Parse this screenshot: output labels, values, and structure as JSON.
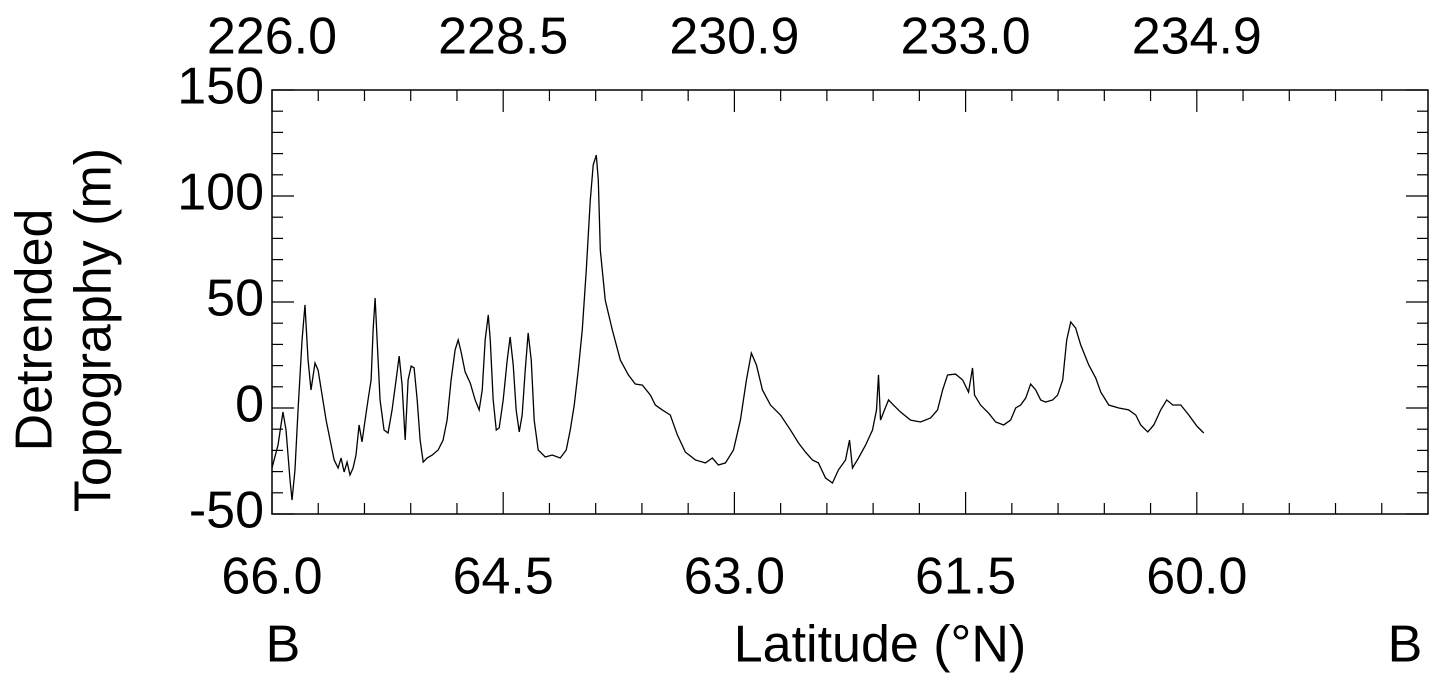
{
  "chart_data": {
    "type": "line",
    "ylabel": [
      "Detrended",
      "Topography (m)"
    ],
    "xlabel": "Latitude (°N)",
    "annotations": [
      "B",
      "B"
    ],
    "color": "#000000",
    "xlim": [
      66.0,
      58.5
    ],
    "xticks": [
      {
        "value": 66.0,
        "label": "66.0"
      },
      {
        "value": 64.5,
        "label": "64.5"
      },
      {
        "value": 63.0,
        "label": "63.0"
      },
      {
        "value": 61.5,
        "label": "61.5"
      },
      {
        "value": 60.0,
        "label": "60.0"
      }
    ],
    "x2tick_labels": [
      "226.0",
      "228.5",
      "230.9",
      "233.0",
      "234.9"
    ],
    "x_minor_per_major": 5,
    "ylim": [
      -50,
      150
    ],
    "yticks": [
      -50,
      0,
      50,
      100,
      150
    ],
    "y_minor_per_major": 5,
    "x": [
      66.0,
      65.961,
      65.929,
      65.909,
      65.883,
      65.87,
      65.851,
      65.831,
      65.805,
      65.786,
      65.766,
      65.747,
      65.721,
      65.701,
      65.675,
      65.649,
      65.623,
      65.597,
      65.571,
      65.552,
      65.532,
      65.513,
      65.494,
      65.474,
      65.455,
      65.435,
      65.416,
      65.396,
      65.377,
      65.357,
      65.344,
      65.331,
      65.318,
      65.299,
      65.273,
      65.247,
      65.221,
      65.195,
      65.175,
      65.156,
      65.136,
      65.117,
      65.097,
      65.078,
      65.058,
      65.039,
      65.019,
      64.994,
      64.961,
      64.922,
      64.89,
      64.864,
      64.838,
      64.812,
      64.792,
      64.773,
      64.747,
      64.714,
      64.682,
      64.656,
      64.636,
      64.617,
      64.597,
      64.584,
      64.565,
      64.545,
      64.526,
      64.5,
      64.474,
      64.455,
      64.435,
      64.416,
      64.396,
      64.377,
      64.357,
      64.338,
      64.318,
      64.299,
      64.273,
      64.227,
      64.182,
      64.13,
      64.091,
      64.065,
      64.039,
      64.013,
      63.987,
      63.961,
      63.935,
      63.916,
      63.896,
      63.883,
      63.87,
      63.838,
      63.792,
      63.74,
      63.688,
      63.643,
      63.597,
      63.545,
      63.513,
      63.468,
      63.416,
      63.37,
      63.318,
      63.253,
      63.188,
      63.143,
      63.104,
      63.058,
      63.006,
      62.961,
      62.922,
      62.89,
      62.857,
      62.818,
      62.766,
      62.701,
      62.636,
      62.584,
      62.539,
      62.494,
      62.455,
      62.409,
      62.364,
      62.325,
      62.279,
      62.253,
      62.234,
      62.195,
      62.149,
      62.104,
      62.078,
      62.065,
      62.052,
      62.026,
      62.0,
      61.968,
      61.922,
      61.857,
      61.792,
      61.727,
      61.682,
      61.649,
      61.617,
      61.565,
      61.519,
      61.481,
      61.455,
      61.442,
      61.403,
      61.351,
      61.305,
      61.253,
      61.208,
      61.175,
      61.143,
      61.11,
      61.078,
      61.045,
      61.013,
      60.981,
      60.935,
      60.903,
      60.87,
      60.844,
      60.818,
      60.786,
      60.753,
      60.701,
      60.656,
      60.623,
      60.571,
      60.506,
      60.442,
      60.396,
      60.364,
      60.318,
      60.279,
      60.234,
      60.195,
      60.156,
      60.104,
      60.052,
      60.0,
      59.955
    ],
    "values": [
      -28.3,
      -17.5,
      -1.9,
      -10.4,
      -34.0,
      -43.4,
      -29.2,
      -0.9,
      32.1,
      48.6,
      22.6,
      8.5,
      21.2,
      17.9,
      6.1,
      -5.7,
      -15.1,
      -24.5,
      -28.3,
      -23.6,
      -30.2,
      -25.5,
      -31.6,
      -28.3,
      -22.2,
      -8.0,
      -16.0,
      -5.7,
      3.8,
      13.2,
      36.8,
      51.9,
      32.1,
      3.8,
      -10.4,
      -11.8,
      -0.9,
      13.2,
      24.5,
      10.8,
      -15.1,
      13.2,
      19.8,
      18.9,
      3.8,
      -15.1,
      -25.5,
      -23.6,
      -22.2,
      -19.8,
      -15.1,
      -5.7,
      13.2,
      27.4,
      32.1,
      26.4,
      17.0,
      11.8,
      3.8,
      -0.9,
      8.5,
      32.1,
      43.9,
      32.1,
      3.8,
      -10.4,
      -9.4,
      3.8,
      22.6,
      33.5,
      20.3,
      -0.9,
      -11.3,
      -3.3,
      17.9,
      35.4,
      22.6,
      -5.7,
      -19.8,
      -23.1,
      -22.2,
      -23.6,
      -19.8,
      -10.4,
      1.4,
      17.9,
      36.8,
      65.1,
      98.1,
      114.6,
      119.3,
      107.5,
      74.5,
      50.9,
      36.8,
      22.6,
      15.6,
      11.3,
      10.8,
      6.1,
      1.4,
      -0.9,
      -3.3,
      -12.7,
      -20.8,
      -24.5,
      -25.9,
      -23.6,
      -26.9,
      -25.9,
      -19.8,
      -5.7,
      13.2,
      25.9,
      20.3,
      8.5,
      1.4,
      -3.3,
      -10.4,
      -16.5,
      -20.8,
      -24.5,
      -25.9,
      -33.0,
      -35.4,
      -29.2,
      -24.5,
      -15.1,
      -28.3,
      -23.6,
      -17.5,
      -10.4,
      -0.9,
      15.6,
      -5.7,
      -0.9,
      3.8,
      1.4,
      -1.9,
      -5.7,
      -6.6,
      -4.7,
      -0.9,
      8.5,
      15.6,
      16.0,
      13.2,
      7.5,
      18.9,
      6.1,
      1.4,
      -2.4,
      -6.6,
      -8.0,
      -5.7,
      0.0,
      1.4,
      4.7,
      11.3,
      8.5,
      3.8,
      2.8,
      3.8,
      6.1,
      13.2,
      32.1,
      40.6,
      37.7,
      29.7,
      20.3,
      14.2,
      7.5,
      1.4,
      0.0,
      -0.9,
      -3.3,
      -8.0,
      -11.3,
      -8.0,
      -0.9,
      3.8,
      1.4,
      1.4,
      -3.3,
      -8.5,
      -11.8
    ]
  }
}
